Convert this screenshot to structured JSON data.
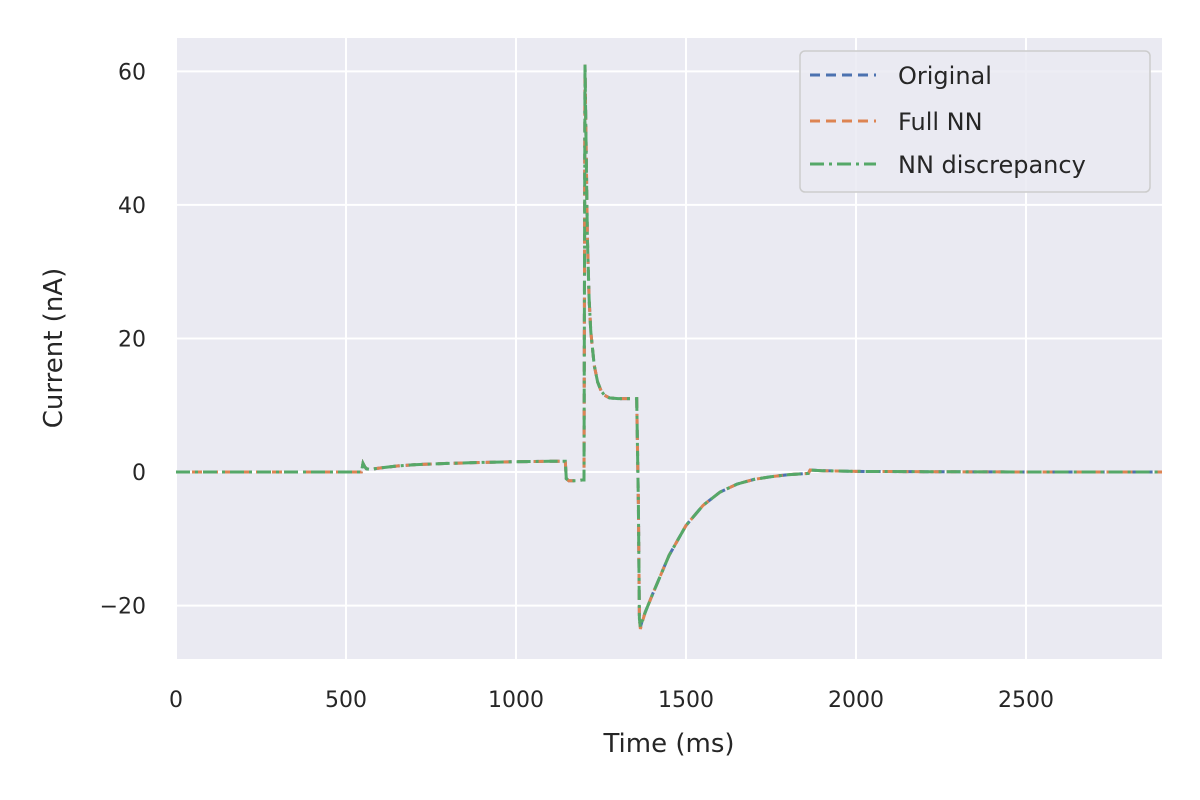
{
  "chart_data": {
    "type": "line",
    "title": "",
    "xlabel": "Time (ms)",
    "ylabel": "Current (nA)",
    "xlim": [
      0,
      2900
    ],
    "ylim": [
      -28,
      65
    ],
    "xticks": [
      0,
      500,
      1000,
      1500,
      2000,
      2500
    ],
    "yticks": [
      -20,
      0,
      20,
      40,
      60
    ],
    "xtick_labels": [
      "0",
      "500",
      "1000",
      "1500",
      "2000",
      "2500"
    ],
    "ytick_labels": [
      "−20",
      "0",
      "20",
      "40",
      "60"
    ],
    "grid": true,
    "legend_position": "top-right",
    "colors": {
      "background": "#eaeaf2",
      "grid": "#ffffff",
      "original": "#4c72b0",
      "full_nn": "#dd8452",
      "nn_discrepancy": "#55a868"
    },
    "series": [
      {
        "name": "Original",
        "style": "dashed",
        "x": [
          0,
          545,
          550,
          555,
          560,
          570,
          600,
          650,
          700,
          800,
          900,
          1000,
          1100,
          1145,
          1148,
          1155,
          1175,
          1195,
          1200,
          1203,
          1206,
          1210,
          1215,
          1220,
          1230,
          1240,
          1250,
          1260,
          1275,
          1300,
          1330,
          1355,
          1360,
          1363,
          1366,
          1370,
          1380,
          1400,
          1450,
          1500,
          1550,
          1600,
          1650,
          1700,
          1750,
          1800,
          1860,
          1865,
          1900,
          2000,
          2200,
          2500,
          2700,
          2900
        ],
        "y": [
          0,
          0,
          1.3,
          0.8,
          0.5,
          0.4,
          0.6,
          0.9,
          1.1,
          1.3,
          1.45,
          1.55,
          1.6,
          1.6,
          -1.0,
          -1.3,
          -1.3,
          -1.2,
          -1.2,
          61,
          50,
          35,
          26,
          21,
          16,
          13.5,
          12.2,
          11.5,
          11.1,
          11,
          11,
          11,
          -5,
          -22,
          -23.2,
          -22.5,
          -21,
          -18.5,
          -12.5,
          -8,
          -5,
          -3,
          -1.8,
          -1.1,
          -0.7,
          -0.4,
          -0.2,
          0.3,
          0.2,
          0.1,
          0.05,
          0,
          0,
          0
        ]
      },
      {
        "name": "Full NN",
        "style": "dashed",
        "x": [
          0,
          545,
          550,
          555,
          560,
          570,
          600,
          650,
          700,
          800,
          900,
          1000,
          1100,
          1145,
          1148,
          1155,
          1175,
          1195,
          1200,
          1203,
          1206,
          1210,
          1215,
          1220,
          1230,
          1240,
          1250,
          1260,
          1275,
          1300,
          1330,
          1355,
          1360,
          1363,
          1366,
          1370,
          1380,
          1400,
          1450,
          1500,
          1550,
          1600,
          1650,
          1700,
          1750,
          1800,
          1860,
          1865,
          1900,
          2000,
          2200,
          2500,
          2700,
          2900
        ],
        "y": [
          0,
          0,
          1.3,
          0.8,
          0.5,
          0.4,
          0.6,
          0.9,
          1.1,
          1.3,
          1.45,
          1.55,
          1.6,
          1.6,
          -1.0,
          -1.3,
          -1.3,
          -1.2,
          -1.2,
          61,
          50,
          35,
          26,
          21,
          16,
          13.5,
          12.2,
          11.5,
          11.1,
          11,
          11,
          11,
          -5,
          -22,
          -23.5,
          -22.7,
          -21,
          -18.5,
          -12.5,
          -8,
          -5,
          -3,
          -1.8,
          -1.1,
          -0.7,
          -0.4,
          -0.2,
          0.3,
          0.2,
          0.1,
          0.05,
          0,
          0,
          0
        ]
      },
      {
        "name": "NN discrepancy",
        "style": "dashdot",
        "x": [
          0,
          545,
          550,
          555,
          560,
          570,
          600,
          650,
          700,
          800,
          900,
          1000,
          1100,
          1145,
          1148,
          1155,
          1175,
          1195,
          1200,
          1203,
          1206,
          1210,
          1215,
          1220,
          1230,
          1240,
          1250,
          1260,
          1275,
          1300,
          1330,
          1355,
          1360,
          1363,
          1366,
          1370,
          1380,
          1400,
          1450,
          1500,
          1550,
          1600,
          1650,
          1700,
          1750,
          1800,
          1860,
          1865,
          1900,
          2000,
          2200,
          2500,
          2700,
          2900
        ],
        "y": [
          0,
          0,
          1.3,
          0.8,
          0.5,
          0.4,
          0.6,
          0.9,
          1.1,
          1.3,
          1.45,
          1.55,
          1.6,
          1.6,
          -1.0,
          -1.3,
          -1.3,
          -1.2,
          -1.2,
          61,
          50,
          35,
          26,
          21,
          16,
          13.5,
          12.2,
          11.5,
          11.1,
          11,
          11,
          11,
          -5,
          -22,
          -23.2,
          -22.5,
          -21,
          -18.5,
          -12.5,
          -8,
          -5,
          -3,
          -1.8,
          -1.1,
          -0.7,
          -0.4,
          -0.2,
          0.3,
          0.2,
          0.1,
          0.05,
          0,
          0,
          0
        ]
      }
    ]
  }
}
